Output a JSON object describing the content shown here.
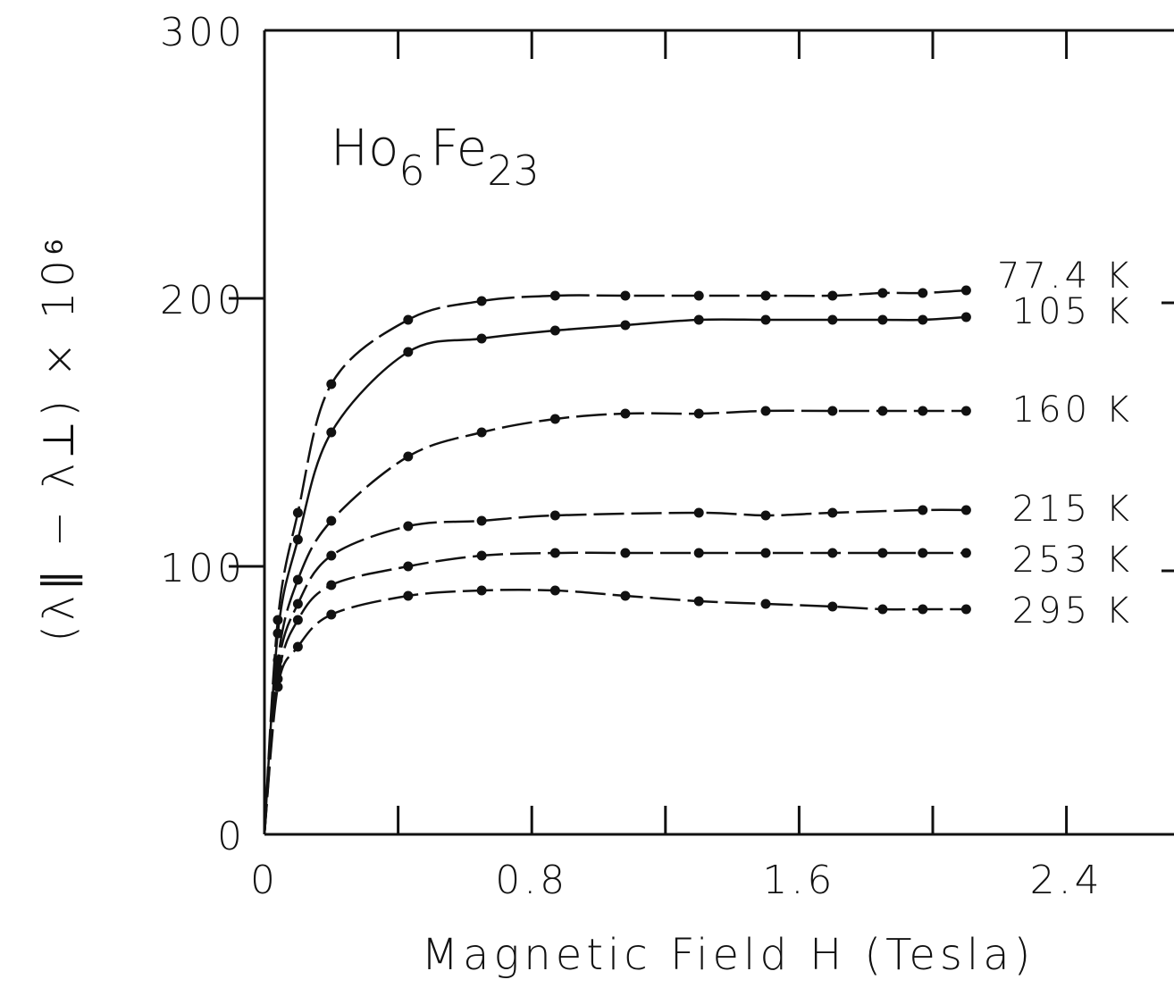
{
  "chart_data": {
    "type": "line",
    "xlabel": "Magnetic Field  H (Tesla)",
    "ylabel": "(λ∥ − λ⊥) × 10⁶",
    "annotation": {
      "base": "Ho",
      "sub1": "6",
      "mid": "Fe",
      "sub2": "23"
    },
    "xlim": [
      0,
      2.7
    ],
    "ylim": [
      0,
      300
    ],
    "x_ticks": [
      {
        "value": 0,
        "label": "0"
      },
      {
        "value": 0.8,
        "label": "0.8"
      },
      {
        "value": 1.6,
        "label": "1.6"
      },
      {
        "value": 2.4,
        "label": "2.4"
      }
    ],
    "x_minor_ticks": [
      0.4,
      1.2,
      2.0
    ],
    "y_ticks": [
      {
        "value": 0,
        "label": "0"
      },
      {
        "value": 100,
        "label": "100"
      },
      {
        "value": 200,
        "label": "200"
      },
      {
        "value": 300,
        "label": "300"
      }
    ],
    "grid": false,
    "series": [
      {
        "name": "77.4 K",
        "x": [
          0,
          0.04,
          0.1,
          0.2,
          0.43,
          0.65,
          0.87,
          1.08,
          1.3,
          1.5,
          1.7,
          1.85,
          1.97,
          2.1
        ],
        "y": [
          0,
          80,
          120,
          168,
          192,
          199,
          201,
          201,
          201,
          201,
          201,
          202,
          202,
          203
        ]
      },
      {
        "name": "105 K",
        "x": [
          0,
          0.04,
          0.1,
          0.2,
          0.43,
          0.65,
          0.87,
          1.08,
          1.3,
          1.5,
          1.7,
          1.85,
          1.97,
          2.1
        ],
        "y": [
          0,
          75,
          110,
          150,
          180,
          185,
          188,
          190,
          192,
          192,
          192,
          192,
          192,
          193
        ]
      },
      {
        "name": "160 K",
        "x": [
          0,
          0.04,
          0.1,
          0.2,
          0.43,
          0.65,
          0.87,
          1.08,
          1.3,
          1.5,
          1.7,
          1.85,
          1.97,
          2.1
        ],
        "y": [
          0,
          65,
          95,
          117,
          141,
          150,
          155,
          157,
          157,
          158,
          158,
          158,
          158,
          158
        ]
      },
      {
        "name": "215 K",
        "x": [
          0,
          0.04,
          0.1,
          0.2,
          0.43,
          0.65,
          0.87,
          1.3,
          1.5,
          1.7,
          1.97,
          2.1
        ],
        "y": [
          0,
          62,
          86,
          104,
          115,
          117,
          119,
          120,
          119,
          120,
          121,
          121
        ]
      },
      {
        "name": "253 K",
        "x": [
          0,
          0.04,
          0.1,
          0.2,
          0.43,
          0.65,
          0.87,
          1.08,
          1.3,
          1.5,
          1.7,
          1.85,
          1.97,
          2.1
        ],
        "y": [
          0,
          58,
          80,
          93,
          100,
          104,
          105,
          105,
          105,
          105,
          105,
          105,
          105,
          105
        ]
      },
      {
        "name": "295 K",
        "x": [
          0,
          0.04,
          0.1,
          0.2,
          0.43,
          0.65,
          0.87,
          1.08,
          1.3,
          1.5,
          1.7,
          1.85,
          1.97,
          2.1
        ],
        "y": [
          0,
          55,
          70,
          82,
          89,
          91,
          91,
          89,
          87,
          86,
          85,
          84,
          84,
          84
        ]
      }
    ]
  }
}
